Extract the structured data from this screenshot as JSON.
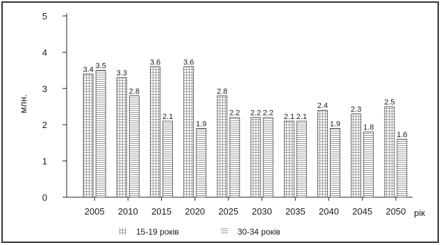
{
  "chart_data": {
    "type": "bar",
    "title": "",
    "xlabel": "рік",
    "ylabel": "млн.",
    "categories": [
      "2005",
      "2010",
      "2015",
      "2020",
      "2025",
      "2030",
      "2035",
      "2040",
      "2045",
      "2050"
    ],
    "series": [
      {
        "name": "15-19 років",
        "values": [
          3.4,
          3.3,
          3.6,
          3.6,
          2.8,
          2.2,
          2.1,
          2.4,
          2.3,
          2.5
        ],
        "pattern": "grid"
      },
      {
        "name": "30-34 років",
        "values": [
          3.5,
          2.8,
          2.1,
          1.9,
          2.2,
          2.2,
          2.1,
          1.9,
          1.8,
          1.6
        ],
        "pattern": "horizontal-lines"
      }
    ],
    "value_labels": [
      [
        "3.4",
        "3.3",
        "3.6",
        "3.6",
        "2.8",
        "2.2",
        "2.1",
        "2.4",
        "2.3",
        "2.5"
      ],
      [
        "3.5",
        "2.8",
        "2.1",
        "1.9",
        "2.2",
        "2.2",
        "2.1",
        "1.9",
        "1.8",
        "1.6"
      ]
    ],
    "ylim": [
      0,
      5
    ],
    "yticks": [
      "0",
      "1",
      "2",
      "3",
      "4",
      "5"
    ],
    "grid": false,
    "legend_position": "bottom"
  },
  "colors": {
    "frame": "#333333",
    "axis": "#222222",
    "bar_stroke": "#444444",
    "pattern": "#8a8a8a",
    "background": "#ffffff"
  }
}
